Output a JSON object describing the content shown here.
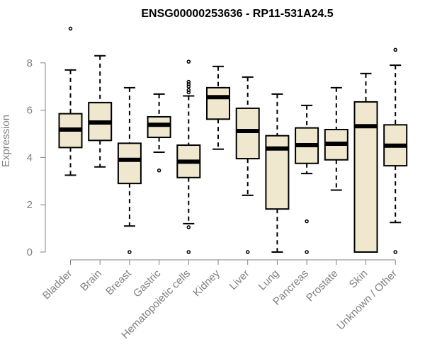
{
  "chart_data": {
    "type": "boxplot",
    "title": "ENSG00000253636 - RP11-531A24.5",
    "xlabel": "",
    "ylabel": "Expression",
    "ylim": [
      0,
      9.5
    ],
    "yticks": [
      0,
      2,
      4,
      6,
      8
    ],
    "box_fill": "#efe8cf",
    "categories": [
      "Bladder",
      "Brain",
      "Breast",
      "Gastric",
      "Hematopoietic cells",
      "Kidney",
      "Liver",
      "Lung",
      "Pancreas",
      "Prostate",
      "Skin",
      "Unknown / Other"
    ],
    "boxes": [
      {
        "whisker_low": 3.25,
        "q1": 4.42,
        "median": 5.18,
        "q3": 5.85,
        "whisker_high": 7.7,
        "outliers": [
          9.45
        ]
      },
      {
        "whisker_low": 3.6,
        "q1": 4.72,
        "median": 5.48,
        "q3": 6.32,
        "whisker_high": 8.3,
        "outliers": []
      },
      {
        "whisker_low": 1.1,
        "q1": 2.9,
        "median": 3.9,
        "q3": 4.6,
        "whisker_high": 6.95,
        "outliers": [
          0.0
        ]
      },
      {
        "whisker_low": 4.22,
        "q1": 4.85,
        "median": 5.38,
        "q3": 5.72,
        "whisker_high": 6.68,
        "outliers": [
          3.45
        ]
      },
      {
        "whisker_low": 1.2,
        "q1": 3.15,
        "median": 3.82,
        "q3": 4.52,
        "whisker_high": 6.6,
        "outliers": [
          0.0,
          1.05,
          6.75,
          6.85,
          7.0,
          7.1,
          7.2,
          8.05
        ]
      },
      {
        "whisker_low": 4.35,
        "q1": 5.62,
        "median": 6.55,
        "q3": 6.95,
        "whisker_high": 7.85,
        "outliers": []
      },
      {
        "whisker_low": 2.4,
        "q1": 3.95,
        "median": 5.12,
        "q3": 6.08,
        "whisker_high": 7.4,
        "outliers": [
          0.0
        ]
      },
      {
        "whisker_low": 0.0,
        "q1": 1.82,
        "median": 4.38,
        "q3": 4.92,
        "whisker_high": 6.68,
        "outliers": []
      },
      {
        "whisker_low": 3.32,
        "q1": 3.75,
        "median": 4.52,
        "q3": 5.25,
        "whisker_high": 6.2,
        "outliers": [
          0.0,
          1.3
        ]
      },
      {
        "whisker_low": 2.62,
        "q1": 3.9,
        "median": 4.58,
        "q3": 5.18,
        "whisker_high": 6.95,
        "outliers": []
      },
      {
        "whisker_low": 0.0,
        "q1": 0.0,
        "median": 5.32,
        "q3": 6.35,
        "whisker_high": 7.55,
        "outliers": []
      },
      {
        "whisker_low": 1.25,
        "q1": 3.65,
        "median": 4.5,
        "q3": 5.38,
        "whisker_high": 7.9,
        "outliers": [
          0.0,
          8.55
        ]
      }
    ]
  }
}
